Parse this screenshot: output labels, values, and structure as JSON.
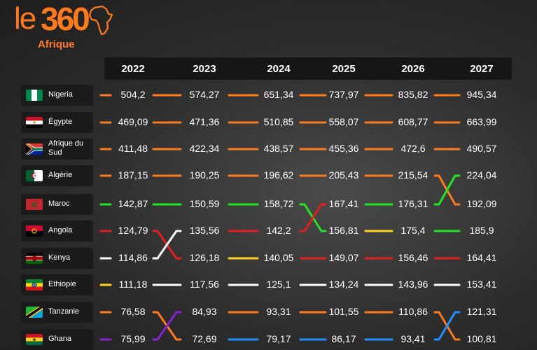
{
  "brand": {
    "logo_le": "le",
    "logo_num": "360",
    "logo_sub": "Afrique"
  },
  "colors": {
    "orange": "#ff7a1a",
    "green": "#22e622",
    "red": "#e81e1e",
    "yellow": "#ffd21e",
    "white": "#ffffff",
    "purple": "#8a1fd6",
    "blue": "#1e90ff"
  },
  "chart_data": {
    "type": "table",
    "years": [
      "2022",
      "2023",
      "2024",
      "2025",
      "2026",
      "2027"
    ],
    "rows": [
      {
        "country": "Nigeria",
        "flag": "nigeria-flag",
        "values": [
          "504,2",
          "574,27",
          "651,34",
          "737,97",
          "835,82",
          "945,34"
        ],
        "colors": [
          "orange",
          "orange",
          "orange",
          "orange",
          "orange",
          "orange"
        ]
      },
      {
        "country": "Égypte",
        "flag": "egypt-flag",
        "values": [
          "469,09",
          "471,36",
          "510,85",
          "558,07",
          "608,77",
          "663,99"
        ],
        "colors": [
          "orange",
          "orange",
          "orange",
          "orange",
          "orange",
          "orange"
        ]
      },
      {
        "country": "Afrique du Sud",
        "flag": "south-africa-flag",
        "values": [
          "411,48",
          "422,34",
          "438,57",
          "455,36",
          "472,6",
          "490,57"
        ],
        "colors": [
          "orange",
          "orange",
          "orange",
          "orange",
          "orange",
          "orange"
        ]
      },
      {
        "country": "Algérie",
        "flag": "algeria-flag",
        "values": [
          "187,15",
          "190,25",
          "196,62",
          "205,43",
          "215,54",
          "224,04"
        ],
        "colors": [
          "orange",
          "orange",
          "orange",
          "orange",
          "orange",
          "orange"
        ]
      },
      {
        "country": "Maroc",
        "flag": "morocco-flag",
        "values": [
          "142,87",
          "150,59",
          "158,72",
          "167,41",
          "176,31",
          "192,09"
        ],
        "colors": [
          "green",
          "green",
          "green",
          "green",
          "green",
          "green"
        ]
      },
      {
        "country": "Angola",
        "flag": "angola-flag",
        "values": [
          "124,79",
          "135,56",
          "142,2",
          "156,81",
          "175,4",
          "185,9"
        ],
        "colors": [
          "red",
          "red",
          "red",
          "red",
          "yellow",
          "green"
        ]
      },
      {
        "country": "Kenya",
        "flag": "kenya-flag",
        "values": [
          "114,86",
          "126,18",
          "140,05",
          "149,07",
          "156,46",
          "164,41"
        ],
        "colors": [
          "white",
          "yellow",
          "yellow",
          "red",
          "red",
          "red"
        ]
      },
      {
        "country": "Ethiopie",
        "flag": "ethiopia-flag",
        "values": [
          "111,18",
          "117,56",
          "125,1",
          "134,24",
          "143,96",
          "153,41"
        ],
        "colors": [
          "yellow",
          "white",
          "white",
          "white",
          "white",
          "white"
        ]
      },
      {
        "country": "Tanzanie",
        "flag": "tanzania-flag",
        "values": [
          "76,58",
          "84,93",
          "93,31",
          "101,55",
          "110,86",
          "121,31"
        ],
        "colors": [
          "orange",
          "orange",
          "orange",
          "orange",
          "orange",
          "orange"
        ]
      },
      {
        "country": "Ghana",
        "flag": "ghana-flag",
        "values": [
          "75,99",
          "72,69",
          "79,17",
          "86,17",
          "93,41",
          "100,81"
        ],
        "colors": [
          "purple",
          "blue",
          "blue",
          "blue",
          "blue",
          "blue"
        ]
      }
    ],
    "swaps": [
      {
        "rows": [
          6,
          7
        ],
        "between_years": [
          "2022",
          "2023"
        ]
      },
      {
        "rows": [
          5,
          6
        ],
        "between_years": [
          "2024",
          "2025"
        ]
      },
      {
        "rows": [
          4,
          5
        ],
        "between_years": [
          "2026",
          "2027"
        ]
      },
      {
        "rows": [
          9,
          10
        ],
        "between_years": [
          "2022",
          "2023"
        ]
      },
      {
        "rows": [
          9,
          10
        ],
        "between_years": [
          "2026",
          "2027"
        ]
      }
    ]
  }
}
